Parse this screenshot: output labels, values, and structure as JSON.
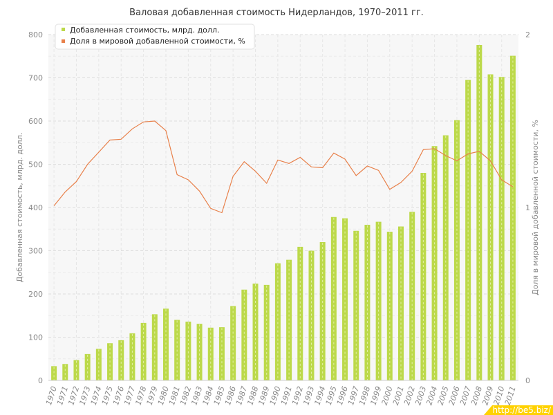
{
  "watermark": "http://be5.biz/",
  "chart_data": {
    "type": "bar",
    "title": "Валовая добавленная стоимость Нидерландов, 1970–2011 гг.",
    "categories": [
      "1970",
      "1971",
      "1972",
      "1973",
      "1974",
      "1975",
      "1976",
      "1977",
      "1978",
      "1979",
      "1980",
      "1981",
      "1982",
      "1983",
      "1984",
      "1985",
      "1986",
      "1987",
      "1988",
      "1989",
      "1990",
      "1991",
      "1992",
      "1993",
      "1994",
      "1995",
      "1996",
      "1997",
      "1998",
      "1999",
      "2000",
      "2001",
      "2002",
      "2003",
      "2004",
      "2005",
      "2006",
      "2007",
      "2008",
      "2009",
      "2010",
      "2011"
    ],
    "ylabel": "Добавленная стоимость, млрд. долл.",
    "y2label": "Доля в мировой добавленной стоимости, %",
    "ylim": [
      0,
      800
    ],
    "yticks": [
      "0",
      "100",
      "200",
      "300",
      "400",
      "500",
      "600",
      "700",
      "800"
    ],
    "y2lim": [
      0,
      2
    ],
    "y2ticks": [
      "0",
      "1",
      "2"
    ],
    "grid": true,
    "legend_position": "top-left",
    "series": [
      {
        "name": "Добавленная стоимость, млрд. долл.",
        "type": "bar",
        "axis": "left",
        "color": "#bcd94a",
        "values": [
          33,
          38,
          47,
          61,
          73,
          86,
          93,
          109,
          133,
          153,
          166,
          140,
          136,
          131,
          122,
          123,
          172,
          210,
          224,
          221,
          271,
          279,
          309,
          300,
          320,
          378,
          375,
          346,
          360,
          367,
          344,
          356,
          390,
          480,
          542,
          567,
          602,
          695,
          776,
          708,
          702,
          751
        ]
      },
      {
        "name": "Доля в мировой добавленной стоимости, %",
        "type": "line",
        "axis": "right",
        "color": "#e8804a",
        "values": [
          1.01,
          1.09,
          1.15,
          1.25,
          1.32,
          1.39,
          1.395,
          1.455,
          1.495,
          1.5,
          1.445,
          1.19,
          1.16,
          1.095,
          0.995,
          0.97,
          1.18,
          1.265,
          1.21,
          1.14,
          1.275,
          1.255,
          1.29,
          1.235,
          1.23,
          1.315,
          1.28,
          1.185,
          1.24,
          1.215,
          1.105,
          1.145,
          1.21,
          1.335,
          1.34,
          1.3,
          1.27,
          1.31,
          1.325,
          1.27,
          1.16,
          1.12
        ]
      }
    ]
  }
}
